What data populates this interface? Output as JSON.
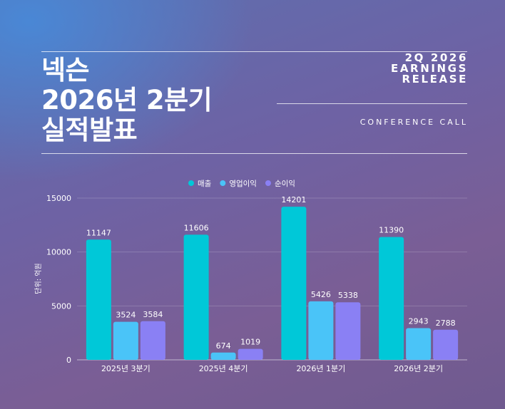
{
  "header": {
    "title_lines": [
      "넥슨",
      "2026년 2분기",
      "실적발표"
    ],
    "release_lines": [
      "2Q 2026",
      "EARNINGS",
      "RELEASE"
    ],
    "subtitle": "CONFERENCE CALL"
  },
  "colors": {
    "revenue": "#00c8d8",
    "operating_profit": "#4ac4f8",
    "net_income": "#8a80f4"
  },
  "chart_data": {
    "type": "bar",
    "categories": [
      "2025년 3분기",
      "2025년 4분기",
      "2026년 1분기",
      "2026년 2분기"
    ],
    "series": [
      {
        "name": "매출",
        "values": [
          11147,
          11606,
          14201,
          11390
        ]
      },
      {
        "name": "영업이익",
        "values": [
          3524,
          674,
          5426,
          2943
        ]
      },
      {
        "name": "순이익",
        "values": [
          3584,
          1019,
          5338,
          2788
        ]
      }
    ],
    "ylabel": "단위: 억원",
    "ylim": [
      0,
      15000
    ],
    "yticks": [
      0,
      5000,
      10000,
      15000
    ],
    "grid": true,
    "legend": "top-center"
  }
}
